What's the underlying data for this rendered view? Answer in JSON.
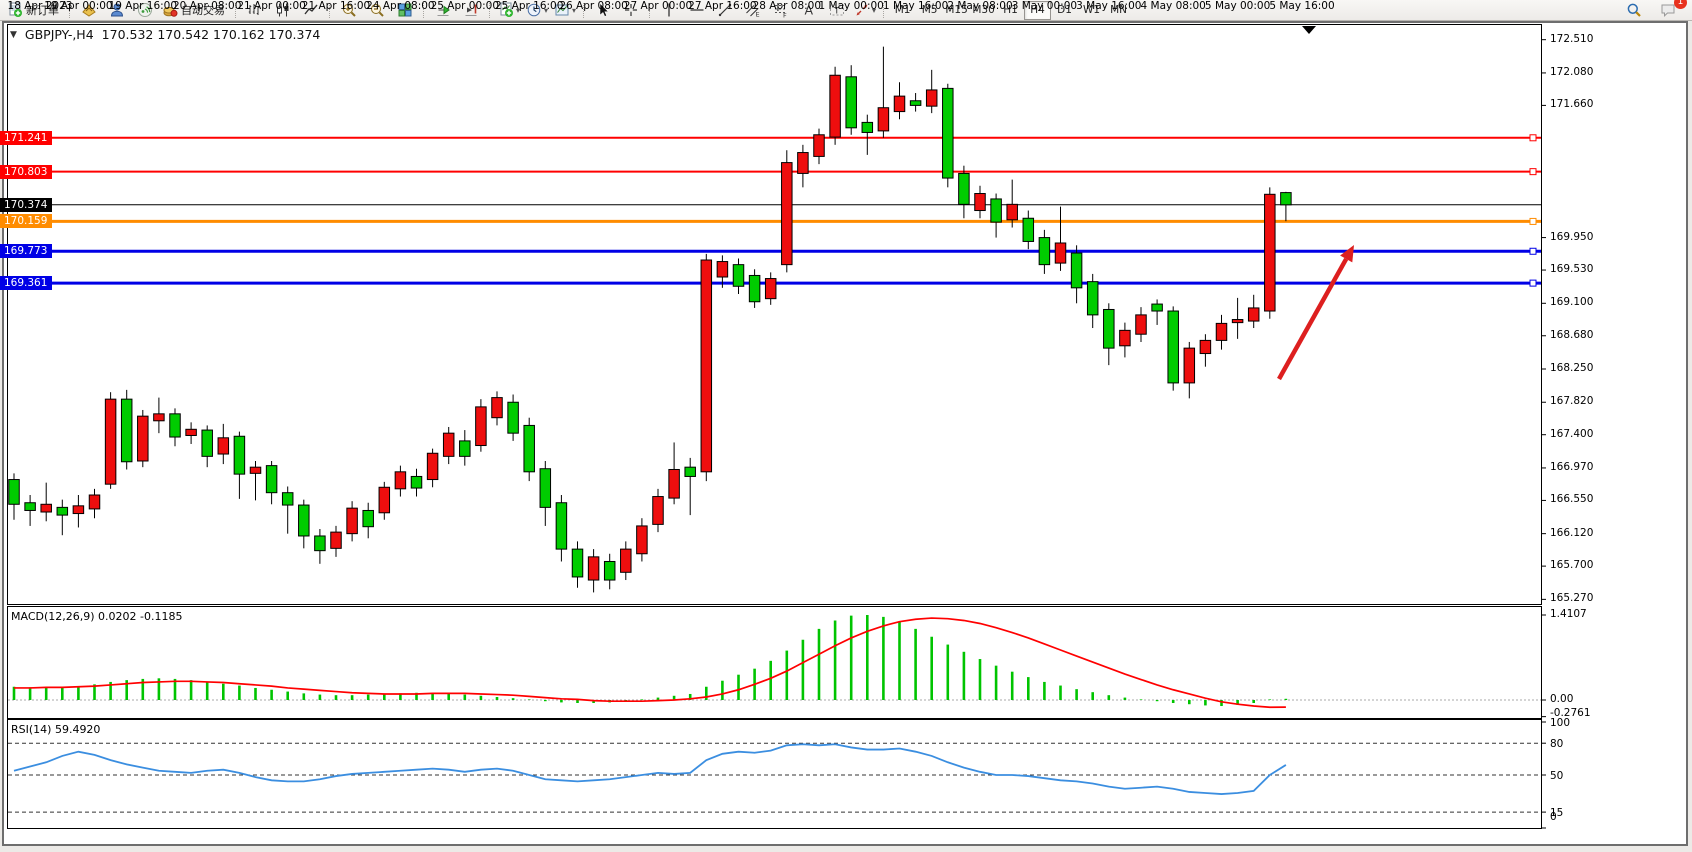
{
  "toolbar": {
    "active_timeframe": "H4",
    "groups": [
      {
        "items": [
          {
            "icon": "new-order",
            "label": "新订单"
          }
        ]
      },
      {
        "items": [
          {
            "icon": "charts"
          },
          {
            "icon": "profile"
          },
          {
            "icon": "signals"
          },
          {
            "icon": "autotrading",
            "label": "自动交易"
          }
        ]
      },
      {
        "items": [
          {
            "icon": "bar-chart"
          },
          {
            "icon": "candle-chart"
          },
          {
            "icon": "line-chart"
          }
        ]
      },
      {
        "items": [
          {
            "icon": "zoom-in"
          },
          {
            "icon": "zoom-out"
          },
          {
            "icon": "tile-windows"
          }
        ]
      },
      {
        "items": [
          {
            "icon": "auto-scroll"
          },
          {
            "icon": "chart-shift"
          }
        ]
      },
      {
        "items": [
          {
            "icon": "indicators",
            "dropdown": true
          },
          {
            "icon": "periods",
            "dropdown": true
          },
          {
            "icon": "templates",
            "dropdown": true
          }
        ]
      },
      {
        "items": [
          {
            "icon": "cursor"
          },
          {
            "icon": "crosshair"
          }
        ]
      },
      {
        "items": [
          {
            "icon": "vertical-line"
          },
          {
            "icon": "horizontal-line"
          },
          {
            "icon": "trendline"
          },
          {
            "icon": "equidistant-channel"
          },
          {
            "icon": "fibonacci"
          },
          {
            "icon": "text"
          },
          {
            "icon": "text-label"
          },
          {
            "icon": "arrows",
            "dropdown": true
          }
        ]
      },
      {
        "items": [
          {
            "tf": "M1"
          },
          {
            "tf": "M5"
          },
          {
            "tf": "M15"
          },
          {
            "tf": "M30"
          },
          {
            "tf": "H1"
          },
          {
            "tf": "H4"
          },
          {
            "tf": "D1"
          },
          {
            "tf": "W1"
          },
          {
            "tf": "MN"
          }
        ]
      }
    ],
    "right": [
      {
        "icon": "search"
      },
      {
        "icon": "chat",
        "badge": "1"
      }
    ]
  },
  "chart": {
    "symbol_period": "GBPJPY-,H4",
    "ohlc": "170.532 170.542 170.162 170.374",
    "bid": {
      "price": 170.374,
      "label": "170.374",
      "color": "#000000"
    },
    "levels": [
      {
        "price": 171.241,
        "label": "171.241",
        "color": "#ff0000",
        "width": 2
      },
      {
        "price": 170.803,
        "label": "170.803",
        "color": "#ff0000",
        "width": 2
      },
      {
        "price": 170.159,
        "label": "170.159",
        "color": "#ff8c00",
        "width": 3
      },
      {
        "price": 169.773,
        "label": "169.773",
        "color": "#0000e6",
        "width": 3
      },
      {
        "price": 169.361,
        "label": "169.361",
        "color": "#0000e6",
        "width": 3
      }
    ],
    "price_ticks": [
      "172.510",
      "172.080",
      "171.660",
      "169.950",
      "169.530",
      "169.100",
      "168.680",
      "168.250",
      "167.820",
      "167.400",
      "166.970",
      "166.550",
      "166.120",
      "165.700",
      "165.270"
    ],
    "time_labels": [
      "18 Apr 2023",
      "19 Apr 00:00",
      "19 Apr 16:00",
      "20 Apr 08:00",
      "21 Apr 00:00",
      "21 Apr 16:00",
      "24 Apr 08:00",
      "25 Apr 00:00",
      "25 Apr 16:00",
      "26 Apr 08:00",
      "27 Apr 00:00",
      "27 Apr 16:00",
      "28 Apr 08:00",
      "1 May 00:00",
      "1 May 16:00",
      "2 May 08:00",
      "3 May 00:00",
      "3 May 16:00",
      "4 May 08:00",
      "5 May 00:00",
      "5 May 16:00"
    ],
    "annotation_arrow": {
      "color": "#dd1f1f",
      "tail": [
        1279,
        379
      ],
      "head": [
        1354,
        245
      ]
    }
  },
  "indicators": {
    "macd": {
      "label": "MACD(12,26,9) 0.0202 -0.1185",
      "axis": [
        {
          "v": 1.4107,
          "label": "1.4107"
        },
        {
          "v": 0,
          "label": "0.00"
        },
        {
          "v": -0.2761,
          "label": "-0.2761"
        }
      ]
    },
    "rsi": {
      "label": "RSI(14) 59.4920",
      "axis": [
        {
          "v": 100,
          "label": "100"
        },
        {
          "v": 80,
          "label": "80"
        },
        {
          "v": 50,
          "label": "50"
        },
        {
          "v": 15,
          "label": "15"
        },
        {
          "v": 0,
          "label": "0"
        }
      ],
      "levels": [
        80,
        50,
        15
      ]
    }
  },
  "chart_data": {
    "type": "candlestick",
    "title": "GBPJPY- H4",
    "price_range": [
      165.21,
      172.7
    ],
    "candles": [
      [
        "g",
        166.82,
        166.5,
        166.9,
        166.3
      ],
      [
        "g",
        166.52,
        166.42,
        166.62,
        166.22
      ],
      [
        "r",
        166.5,
        166.4,
        166.78,
        166.28
      ],
      [
        "g",
        166.46,
        166.36,
        166.56,
        166.1
      ],
      [
        "r",
        166.48,
        166.38,
        166.62,
        166.2
      ],
      [
        "r",
        166.62,
        166.44,
        166.7,
        166.32
      ],
      [
        "r",
        167.86,
        166.76,
        167.95,
        166.7
      ],
      [
        "g",
        167.86,
        167.05,
        167.98,
        166.95
      ],
      [
        "r",
        167.64,
        167.06,
        167.72,
        166.98
      ],
      [
        "r",
        167.67,
        167.58,
        167.88,
        167.42
      ],
      [
        "g",
        167.67,
        167.37,
        167.74,
        167.25
      ],
      [
        "r",
        167.47,
        167.39,
        167.56,
        167.28
      ],
      [
        "g",
        167.46,
        167.12,
        167.52,
        166.98
      ],
      [
        "r",
        167.36,
        167.15,
        167.54,
        167.02
      ],
      [
        "g",
        167.38,
        166.89,
        167.44,
        166.57
      ],
      [
        "r",
        166.98,
        166.9,
        167.06,
        166.55
      ],
      [
        "g",
        167.0,
        166.65,
        167.06,
        166.5
      ],
      [
        "g",
        166.65,
        166.49,
        166.73,
        166.12
      ],
      [
        "g",
        166.49,
        166.09,
        166.56,
        165.93
      ],
      [
        "g",
        166.09,
        165.9,
        166.18,
        165.73
      ],
      [
        "r",
        166.14,
        165.93,
        166.22,
        165.82
      ],
      [
        "r",
        166.45,
        166.12,
        166.54,
        166.02
      ],
      [
        "g",
        166.42,
        166.21,
        166.52,
        166.06
      ],
      [
        "r",
        166.72,
        166.39,
        166.79,
        166.3
      ],
      [
        "r",
        166.92,
        166.7,
        167.0,
        166.6
      ],
      [
        "g",
        166.86,
        166.71,
        166.96,
        166.6
      ],
      [
        "r",
        167.16,
        166.82,
        167.22,
        166.72
      ],
      [
        "r",
        167.42,
        167.12,
        167.5,
        167.02
      ],
      [
        "g",
        167.32,
        167.12,
        167.46,
        167.0
      ],
      [
        "r",
        167.76,
        167.26,
        167.86,
        167.18
      ],
      [
        "r",
        167.88,
        167.62,
        167.96,
        167.52
      ],
      [
        "g",
        167.82,
        167.42,
        167.92,
        167.32
      ],
      [
        "g",
        167.52,
        166.92,
        167.62,
        166.8
      ],
      [
        "g",
        166.96,
        166.46,
        167.06,
        166.22
      ],
      [
        "g",
        166.52,
        165.92,
        166.62,
        165.76
      ],
      [
        "g",
        165.92,
        165.56,
        166.02,
        165.42
      ],
      [
        "r",
        165.82,
        165.52,
        165.92,
        165.36
      ],
      [
        "g",
        165.76,
        165.52,
        165.86,
        165.4
      ],
      [
        "r",
        165.92,
        165.62,
        166.02,
        165.52
      ],
      [
        "r",
        166.22,
        165.86,
        166.32,
        165.76
      ],
      [
        "r",
        166.6,
        166.24,
        166.7,
        166.14
      ],
      [
        "r",
        166.95,
        166.58,
        167.3,
        166.5
      ],
      [
        "g",
        166.98,
        166.86,
        167.1,
        166.36
      ],
      [
        "r",
        169.66,
        166.92,
        169.74,
        166.8
      ],
      [
        "r",
        169.64,
        169.44,
        169.72,
        169.3
      ],
      [
        "g",
        169.6,
        169.32,
        169.68,
        169.22
      ],
      [
        "g",
        169.46,
        169.12,
        169.54,
        169.04
      ],
      [
        "r",
        169.42,
        169.16,
        169.5,
        169.08
      ],
      [
        "r",
        170.92,
        169.6,
        171.08,
        169.5
      ],
      [
        "r",
        171.05,
        170.78,
        171.15,
        170.6
      ],
      [
        "r",
        171.28,
        171.0,
        171.36,
        170.9
      ],
      [
        "r",
        172.05,
        171.25,
        172.16,
        171.15
      ],
      [
        "g",
        172.03,
        171.37,
        172.18,
        171.28
      ],
      [
        "g",
        171.44,
        171.31,
        171.54,
        171.02
      ],
      [
        "r",
        171.63,
        171.33,
        172.42,
        171.24
      ],
      [
        "r",
        171.78,
        171.58,
        171.96,
        171.48
      ],
      [
        "g",
        171.72,
        171.66,
        171.82,
        171.58
      ],
      [
        "r",
        171.86,
        171.65,
        172.12,
        171.56
      ],
      [
        "g",
        171.88,
        170.72,
        171.94,
        170.6
      ],
      [
        "g",
        170.78,
        170.38,
        170.88,
        170.2
      ],
      [
        "r",
        170.52,
        170.3,
        170.62,
        170.2
      ],
      [
        "g",
        170.45,
        170.15,
        170.52,
        169.95
      ],
      [
        "r",
        170.38,
        170.18,
        170.7,
        170.08
      ],
      [
        "g",
        170.2,
        169.9,
        170.3,
        169.8
      ],
      [
        "g",
        169.95,
        169.6,
        170.05,
        169.48
      ],
      [
        "r",
        169.88,
        169.62,
        170.35,
        169.52
      ],
      [
        "g",
        169.75,
        169.3,
        169.85,
        169.1
      ],
      [
        "g",
        169.38,
        168.95,
        169.48,
        168.78
      ],
      [
        "g",
        169.02,
        168.52,
        169.1,
        168.3
      ],
      [
        "r",
        168.75,
        168.55,
        168.85,
        168.4
      ],
      [
        "r",
        168.95,
        168.7,
        169.05,
        168.6
      ],
      [
        "g",
        169.09,
        169.0,
        169.15,
        168.82
      ],
      [
        "g",
        169.0,
        168.07,
        169.06,
        167.97
      ],
      [
        "r",
        168.52,
        168.07,
        168.6,
        167.87
      ],
      [
        "r",
        168.62,
        168.45,
        168.7,
        168.28
      ],
      [
        "r",
        168.84,
        168.62,
        168.95,
        168.5
      ],
      [
        "r",
        168.89,
        168.85,
        169.17,
        168.64
      ],
      [
        "r",
        169.04,
        168.87,
        169.21,
        168.78
      ],
      [
        "r",
        170.51,
        169.0,
        170.6,
        168.9
      ],
      [
        "g",
        170.532,
        170.374,
        170.542,
        170.162
      ]
    ],
    "macd_hist": [
      0.22,
      0.21,
      0.2,
      0.21,
      0.23,
      0.26,
      0.3,
      0.33,
      0.35,
      0.36,
      0.35,
      0.33,
      0.3,
      0.27,
      0.24,
      0.2,
      0.17,
      0.14,
      0.11,
      0.09,
      0.08,
      0.08,
      0.09,
      0.1,
      0.11,
      0.12,
      0.12,
      0.11,
      0.09,
      0.07,
      0.05,
      0.03,
      0.01,
      -0.02,
      -0.04,
      -0.05,
      -0.05,
      -0.04,
      -0.02,
      0.01,
      0.04,
      0.07,
      0.1,
      0.22,
      0.32,
      0.42,
      0.52,
      0.65,
      0.82,
      1.0,
      1.18,
      1.32,
      1.4,
      1.41,
      1.38,
      1.3,
      1.18,
      1.05,
      0.92,
      0.8,
      0.68,
      0.57,
      0.47,
      0.38,
      0.3,
      0.24,
      0.18,
      0.13,
      0.08,
      0.04,
      0.01,
      -0.02,
      -0.05,
      -0.07,
      -0.09,
      -0.1,
      -0.08,
      -0.05,
      0.01,
      0.02
    ],
    "macd_signal": [
      0.2,
      0.2,
      0.21,
      0.21,
      0.22,
      0.23,
      0.25,
      0.27,
      0.29,
      0.3,
      0.31,
      0.31,
      0.3,
      0.29,
      0.27,
      0.25,
      0.23,
      0.2,
      0.18,
      0.16,
      0.14,
      0.12,
      0.11,
      0.1,
      0.1,
      0.1,
      0.11,
      0.11,
      0.11,
      0.1,
      0.09,
      0.08,
      0.06,
      0.04,
      0.02,
      0.01,
      -0.01,
      -0.02,
      -0.02,
      -0.02,
      -0.01,
      0.0,
      0.02,
      0.05,
      0.1,
      0.17,
      0.26,
      0.36,
      0.48,
      0.62,
      0.76,
      0.9,
      1.03,
      1.14,
      1.23,
      1.3,
      1.34,
      1.36,
      1.35,
      1.32,
      1.27,
      1.2,
      1.12,
      1.03,
      0.93,
      0.83,
      0.73,
      0.63,
      0.53,
      0.43,
      0.34,
      0.25,
      0.17,
      0.1,
      0.03,
      -0.03,
      -0.07,
      -0.1,
      -0.12,
      -0.1185
    ],
    "rsi": [
      54,
      58,
      62,
      68,
      72,
      69,
      64,
      60,
      57,
      54,
      53,
      52,
      54,
      55,
      52,
      48,
      45,
      44,
      44,
      46,
      49,
      51,
      52,
      53,
      54,
      55,
      56,
      55,
      53,
      55,
      56,
      54,
      50,
      46,
      45,
      44,
      45,
      46,
      48,
      50,
      52,
      51,
      52,
      64,
      70,
      72,
      71,
      73,
      78,
      79,
      78,
      79,
      76,
      74,
      74,
      75,
      72,
      68,
      62,
      57,
      53,
      50,
      50,
      49,
      47,
      45,
      44,
      42,
      39,
      37,
      38,
      39,
      37,
      34,
      33,
      32,
      33,
      35,
      50,
      59.49
    ]
  },
  "colors": {
    "candle_up": "#ee0e0e",
    "candle_down": "#00cc00",
    "macd_hist": "#00c400",
    "macd_signal": "#ff0000",
    "rsi_line": "#3b8ee0",
    "bid_line": "#000000"
  }
}
